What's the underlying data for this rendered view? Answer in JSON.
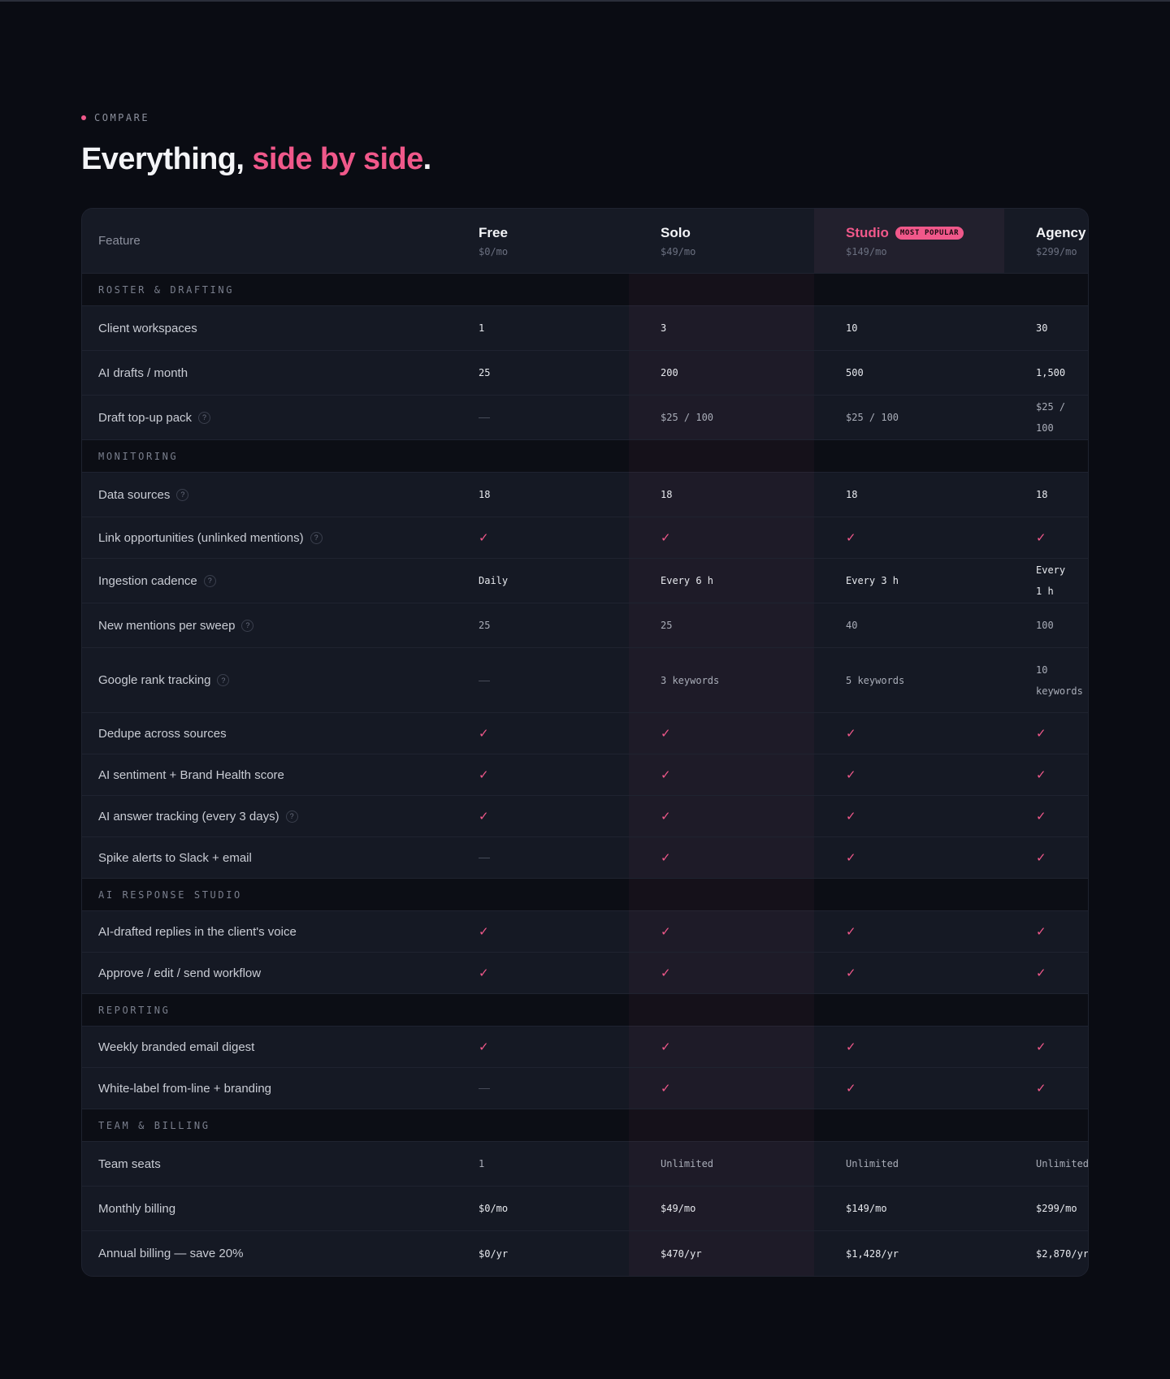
{
  "eyebrow": "COMPARE",
  "headline": {
    "lead": "Everything, ",
    "accent": "side by side",
    "tail": "."
  },
  "colors": {
    "accent": "#f0588a",
    "background": "#0a0c13"
  },
  "table": {
    "feature_header": "Feature",
    "plans": [
      {
        "name": "Free",
        "price": "$0/mo"
      },
      {
        "name": "Solo",
        "price": "$49/mo"
      },
      {
        "name": "Studio",
        "price": "$149/mo",
        "badge": "MOST POPULAR"
      },
      {
        "name": "Agency",
        "price": "$299/mo"
      }
    ],
    "sections": [
      {
        "title": "ROSTER & DRAFTING",
        "rows": [
          {
            "label": "Client workspaces",
            "values": [
              "1",
              "3",
              "10",
              "30"
            ]
          },
          {
            "label": "AI drafts / month",
            "values": [
              "25",
              "200",
              "500",
              "1,500"
            ]
          },
          {
            "label": "Draft top-up pack",
            "help": "?",
            "values": [
              "—",
              "$25 / 100",
              "$25 / 100",
              "$25 / 100"
            ]
          }
        ]
      },
      {
        "title": "MONITORING",
        "rows": [
          {
            "label": "Data sources",
            "help": "?",
            "values": [
              "18",
              "18",
              "18",
              "18"
            ]
          },
          {
            "label": "Link opportunities (unlinked mentions)",
            "help": "?",
            "values": [
              "✓",
              "✓",
              "✓",
              "✓"
            ]
          },
          {
            "label": "Ingestion cadence",
            "help": "?",
            "values": [
              "Daily",
              "Every 6 h",
              "Every 3 h",
              "Every 1 h"
            ]
          },
          {
            "label": "New mentions per sweep",
            "help": "?",
            "values": [
              "25",
              "25",
              "40",
              "100"
            ]
          },
          {
            "label": "Google rank tracking",
            "help": "?",
            "values": [
              "—",
              "3 keywords",
              "5 keywords",
              "10 keywords"
            ]
          },
          {
            "label": "Dedupe across sources",
            "values": [
              "✓",
              "✓",
              "✓",
              "✓"
            ]
          },
          {
            "label": "AI sentiment + Brand Health score",
            "values": [
              "✓",
              "✓",
              "✓",
              "✓"
            ]
          },
          {
            "label": "AI answer tracking (every 3 days)",
            "help": "?",
            "values": [
              "✓",
              "✓",
              "✓",
              "✓"
            ]
          },
          {
            "label": "Spike alerts to Slack + email",
            "values": [
              "—",
              "✓",
              "✓",
              "✓"
            ]
          }
        ]
      },
      {
        "title": "AI RESPONSE STUDIO",
        "rows": [
          {
            "label": "AI-drafted replies in the client's voice",
            "values": [
              "✓",
              "✓",
              "✓",
              "✓"
            ]
          },
          {
            "label": "Approve / edit / send workflow",
            "values": [
              "✓",
              "✓",
              "✓",
              "✓"
            ]
          }
        ]
      },
      {
        "title": "REPORTING",
        "rows": [
          {
            "label": "Weekly branded email digest",
            "values": [
              "✓",
              "✓",
              "✓",
              "✓"
            ]
          },
          {
            "label": "White-label from-line + branding",
            "values": [
              "—",
              "✓",
              "✓",
              "✓"
            ]
          }
        ]
      },
      {
        "title": "TEAM & BILLING",
        "rows": [
          {
            "label": "Team seats",
            "values": [
              "1",
              "Unlimited",
              "Unlimited",
              "Unlimited"
            ]
          },
          {
            "label": "Monthly billing",
            "values": [
              "$0/mo",
              "$49/mo",
              "$149/mo",
              "$299/mo"
            ]
          },
          {
            "label": "Annual billing — save 20%",
            "values": [
              "$0/yr",
              "$470/yr",
              "$1,428/yr",
              "$2,870/yr"
            ]
          }
        ]
      }
    ]
  }
}
